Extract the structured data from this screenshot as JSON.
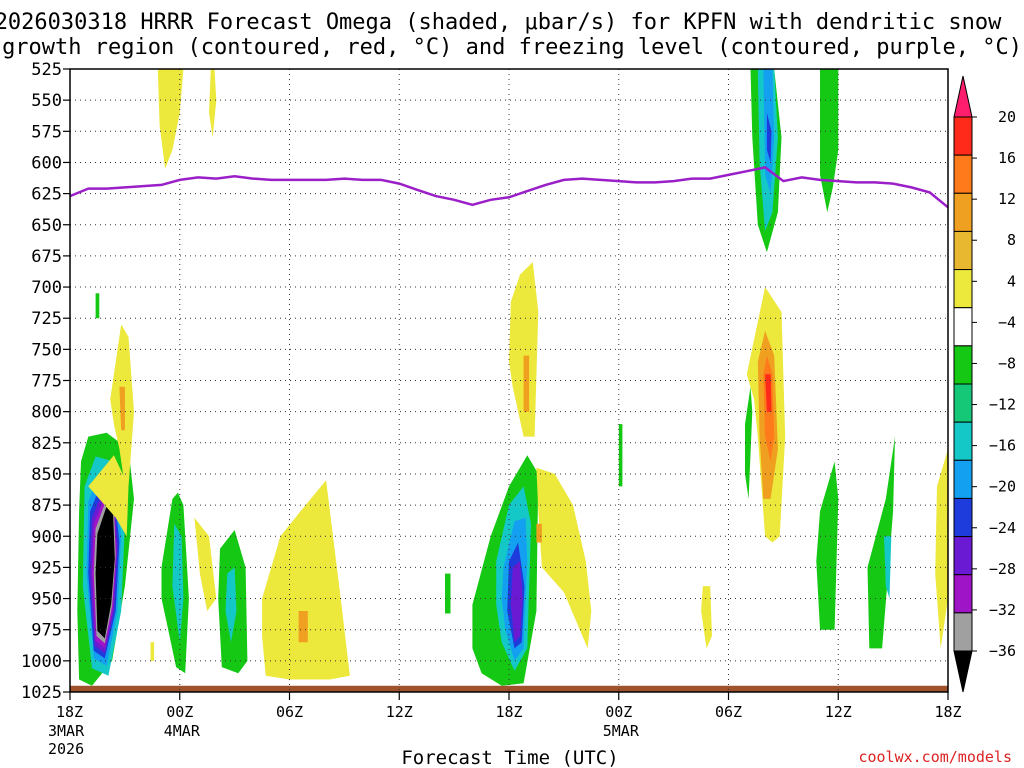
{
  "chart_data": {
    "type": "heatmap",
    "title_line1": "2026030318 HRRR Forecast Omega (shaded, μbar/s) for KPFN with dendritic snow",
    "title_line2": "growth region (contoured, red, °C) and freezing level (contoured, purple, °C)",
    "xlabel": "Forecast Time (UTC)",
    "credit": "coolwx.com/models",
    "x_range_hours": [
      0,
      48
    ],
    "y_range_mb": [
      525,
      1025
    ],
    "y_ticks": [
      "525",
      "550",
      "575",
      "600",
      "625",
      "650",
      "675",
      "700",
      "725",
      "750",
      "775",
      "800",
      "825",
      "850",
      "875",
      "900",
      "925",
      "950",
      "975",
      "1000",
      "1025"
    ],
    "x_ticks": [
      {
        "hour": 0,
        "label": "18Z",
        "sub1": "3MAR",
        "sub2": "2026"
      },
      {
        "hour": 6,
        "label": "00Z",
        "sub1": "4MAR",
        "sub2": ""
      },
      {
        "hour": 12,
        "label": "06Z",
        "sub1": "",
        "sub2": ""
      },
      {
        "hour": 18,
        "label": "12Z",
        "sub1": "",
        "sub2": ""
      },
      {
        "hour": 24,
        "label": "18Z",
        "sub1": "",
        "sub2": ""
      },
      {
        "hour": 30,
        "label": "00Z",
        "sub1": "5MAR",
        "sub2": ""
      },
      {
        "hour": 36,
        "label": "06Z",
        "sub1": "",
        "sub2": ""
      },
      {
        "hour": 42,
        "label": "12Z",
        "sub1": "",
        "sub2": ""
      },
      {
        "hour": 48,
        "label": "18Z",
        "sub1": "",
        "sub2": ""
      }
    ],
    "colorbar": {
      "labels": [
        "20",
        "16",
        "12",
        "8",
        "4",
        "−4",
        "−8",
        "−12",
        "−16",
        "−20",
        "−24",
        "−28",
        "−32",
        "−36"
      ],
      "colors": [
        "#ff1e6e",
        "#ff2a1a",
        "#ff7a1a",
        "#f0a020",
        "#e8b830",
        "#ece83c",
        "#ffffff",
        "#14c814",
        "#14c878",
        "#14c8c8",
        "#14a0f0",
        "#1e3cdc",
        "#6a1ad2",
        "#a014c8",
        "#a0a0a0",
        "#000000"
      ]
    },
    "freezing_level": {
      "name": "freezing level",
      "color": "#9b1fc8",
      "hours": [
        0,
        1,
        2,
        3,
        4,
        5,
        6,
        7,
        8,
        9,
        10,
        11,
        12,
        13,
        14,
        15,
        16,
        17,
        18,
        19,
        20,
        21,
        22,
        23,
        24,
        25,
        26,
        27,
        28,
        29,
        30,
        31,
        32,
        33,
        34,
        35,
        36,
        37,
        38,
        39,
        40,
        41,
        42,
        43,
        44,
        45,
        46,
        47,
        48
      ],
      "pressure_mb": [
        627,
        621,
        621,
        620,
        619,
        618,
        614,
        612,
        613,
        611,
        613,
        614,
        614,
        614,
        614,
        613,
        614,
        614,
        617,
        622,
        627,
        630,
        634,
        630,
        628,
        623,
        618,
        614,
        613,
        614,
        615,
        616,
        616,
        615,
        613,
        613,
        610,
        607,
        604,
        615,
        612,
        614,
        615,
        616,
        616,
        617,
        620,
        624,
        636
      ]
    },
    "omega_regions": [
      {
        "name": "ascent core 18Z-21Z",
        "color": "#14c814",
        "hours": [
          0.6,
          1.0,
          2.0,
          3.2,
          3.5,
          3.0,
          2.3,
          1.2,
          0.5,
          0.4,
          0.5
        ],
        "pressure_mb": [
          840,
          820,
          817,
          830,
          870,
          940,
          1000,
          1020,
          1015,
          960,
          880
        ]
      },
      {
        "name": "ascent core 18Z-21Z",
        "color": "#14c8c8",
        "hours": [
          0.8,
          1.4,
          2.4,
          3.0,
          2.8,
          2.1,
          1.2,
          0.7
        ],
        "pressure_mb": [
          860,
          836,
          840,
          890,
          960,
          1012,
          1006,
          940
        ]
      },
      {
        "name": "ascent core 18Z-21Z",
        "color": "#14a0f0",
        "hours": [
          1.0,
          1.6,
          2.4,
          2.8,
          2.6,
          2.0,
          1.3,
          0.9
        ],
        "pressure_mb": [
          872,
          850,
          856,
          900,
          960,
          1004,
          998,
          930
        ]
      },
      {
        "name": "ascent core 18Z-21Z",
        "color": "#1e3cdc",
        "hours": [
          1.1,
          1.7,
          2.4,
          2.7,
          2.5,
          1.9,
          1.3,
          1.0
        ],
        "pressure_mb": [
          880,
          858,
          862,
          905,
          960,
          998,
          992,
          930
        ]
      },
      {
        "name": "ascent core 18Z-21Z",
        "color": "#6a1ad2",
        "hours": [
          1.2,
          1.8,
          2.4,
          2.6,
          2.4,
          1.9,
          1.35,
          1.1
        ],
        "pressure_mb": [
          885,
          864,
          868,
          908,
          960,
          994,
          988,
          930
        ]
      },
      {
        "name": "ascent core 18Z-21Z",
        "color": "#a014c8",
        "hours": [
          1.3,
          1.9,
          2.4,
          2.55,
          2.35,
          1.9,
          1.4,
          1.2
        ],
        "pressure_mb": [
          890,
          868,
          872,
          912,
          958,
          990,
          984,
          930
        ]
      },
      {
        "name": "ascent core 18Z-21Z",
        "color": "#a0a0a0",
        "hours": [
          1.4,
          1.95,
          2.4,
          2.5,
          2.3,
          1.9,
          1.45,
          1.3
        ],
        "pressure_mb": [
          894,
          872,
          876,
          915,
          956,
          986,
          980,
          930
        ]
      },
      {
        "name": "ascent core 18Z-21Z",
        "color": "#000000",
        "hours": [
          1.5,
          2.0,
          2.35,
          2.45,
          2.25,
          1.9,
          1.5,
          1.4
        ],
        "pressure_mb": [
          898,
          876,
          880,
          918,
          954,
          982,
          976,
          930
        ]
      },
      {
        "name": "ascent 00Z",
        "color": "#14c814",
        "hours": [
          5.0,
          5.6,
          5.9,
          6.2,
          6.5,
          6.3,
          5.8,
          5.3,
          5.0
        ],
        "pressure_mb": [
          925,
          870,
          865,
          875,
          950,
          1010,
          1005,
          970,
          950
        ]
      },
      {
        "name": "ascent 00Z",
        "color": "#14c8c8",
        "hours": [
          5.7,
          6.1,
          6.2,
          6.0,
          5.6
        ],
        "pressure_mb": [
          890,
          900,
          950,
          985,
          940
        ]
      },
      {
        "name": "ascent 03Z",
        "color": "#14c814",
        "hours": [
          8.2,
          9.0,
          9.6,
          9.7,
          9.2,
          8.3,
          8.1
        ],
        "pressure_mb": [
          910,
          895,
          925,
          1000,
          1010,
          1005,
          950
        ]
      },
      {
        "name": "ascent 03Z",
        "color": "#14c8c8",
        "hours": [
          8.6,
          9.0,
          9.1,
          8.8,
          8.5
        ],
        "pressure_mb": [
          930,
          925,
          960,
          985,
          960
        ]
      },
      {
        "name": "ascent 18Z 4MAR",
        "color": "#14c814",
        "hours": [
          22.0,
          23.0,
          24.0,
          25.0,
          25.6,
          25.5,
          24.8,
          23.6,
          22.5,
          22.0
        ],
        "pressure_mb": [
          955,
          900,
          860,
          835,
          850,
          960,
          1018,
          1020,
          1010,
          990
        ]
      },
      {
        "name": "ascent 18Z 4MAR",
        "color": "#14c8c8",
        "hours": [
          23.3,
          24.0,
          24.8,
          25.2,
          25.0,
          24.3,
          23.6,
          23.3
        ],
        "pressure_mb": [
          920,
          875,
          860,
          890,
          990,
          1008,
          985,
          955
        ]
      },
      {
        "name": "ascent 18Z 4MAR",
        "color": "#14a0f0",
        "hours": [
          23.7,
          24.3,
          24.9,
          25.0,
          24.8,
          24.3,
          23.8,
          23.6
        ],
        "pressure_mb": [
          925,
          888,
          885,
          920,
          990,
          1000,
          975,
          950
        ]
      },
      {
        "name": "ascent 18Z 4MAR",
        "color": "#1e3cdc",
        "hours": [
          24.0,
          24.5,
          24.85,
          24.7,
          24.3,
          23.9
        ],
        "pressure_mb": [
          920,
          905,
          940,
          985,
          990,
          960
        ]
      },
      {
        "name": "ascent 18Z 4MAR",
        "color": "#6a1ad2",
        "hours": [
          24.2,
          24.6,
          24.75,
          24.6,
          24.3,
          24.1
        ],
        "pressure_mb": [
          925,
          920,
          950,
          980,
          985,
          955
        ]
      },
      {
        "name": "ascent 08Z upper",
        "color": "#14c814",
        "hours": [
          37.2,
          38.5,
          38.9,
          38.7,
          38.1,
          37.6,
          37.3
        ],
        "pressure_mb": [
          525,
          525,
          580,
          640,
          672,
          650,
          580
        ]
      },
      {
        "name": "ascent 08Z upper",
        "color": "#14c8c8",
        "hours": [
          37.6,
          38.5,
          38.7,
          38.4,
          38.0,
          37.7
        ],
        "pressure_mb": [
          525,
          525,
          580,
          640,
          655,
          600
        ]
      },
      {
        "name": "ascent 08Z upper",
        "color": "#14a0f0",
        "hours": [
          37.9,
          38.4,
          38.5,
          38.3,
          38.0
        ],
        "pressure_mb": [
          525,
          525,
          580,
          625,
          610
        ]
      },
      {
        "name": "ascent 08Z upper",
        "color": "#1e3cdc",
        "hours": [
          38.1,
          38.35,
          38.3,
          38.1
        ],
        "pressure_mb": [
          560,
          575,
          600,
          590
        ]
      },
      {
        "name": "ascent 12Z upper",
        "color": "#14c814",
        "hours": [
          41.0,
          42.0,
          42.0,
          41.7,
          41.4,
          41.0
        ],
        "pressure_mb": [
          525,
          525,
          590,
          620,
          640,
          610
        ]
      },
      {
        "name": "ascent 12Z low",
        "color": "#14c814",
        "hours": [
          41.0,
          41.8,
          42.0,
          41.8,
          41.0,
          40.8
        ],
        "pressure_mb": [
          880,
          840,
          870,
          975,
          975,
          920
        ]
      },
      {
        "name": "ascent 15Z low",
        "color": "#14c814",
        "hours": [
          43.6,
          44.6,
          45.1,
          45.0,
          44.4,
          43.7
        ],
        "pressure_mb": [
          925,
          870,
          820,
          880,
          990,
          990
        ]
      },
      {
        "name": "ascent 15Z low",
        "color": "#14c8c8",
        "hours": [
          44.5,
          44.9,
          44.8,
          44.6
        ],
        "pressure_mb": [
          900,
          900,
          950,
          940
        ]
      },
      {
        "name": "ascent 07Z",
        "color": "#14c814",
        "hours": [
          36.9,
          37.2,
          37.3,
          37.1,
          36.9
        ],
        "pressure_mb": [
          810,
          780,
          800,
          870,
          850
        ]
      },
      {
        "name": "ascent speck",
        "color": "#14c814",
        "hours": [
          1.4,
          1.6,
          1.6,
          1.4
        ],
        "pressure_mb": [
          705,
          705,
          725,
          725
        ]
      },
      {
        "name": "ascent speck",
        "color": "#14c814",
        "hours": [
          20.5,
          20.8,
          20.8,
          20.5
        ],
        "pressure_mb": [
          930,
          930,
          962,
          962
        ]
      },
      {
        "name": "ascent speck",
        "color": "#14c814",
        "hours": [
          30.0,
          30.2,
          30.2,
          30.0
        ],
        "pressure_mb": [
          810,
          810,
          860,
          860
        ]
      },
      {
        "name": "descent upper 20Z",
        "color": "#ece83c",
        "hours": [
          4.8,
          6.2,
          6.0,
          5.6,
          5.2,
          4.9
        ],
        "pressure_mb": [
          525,
          525,
          560,
          590,
          605,
          570
        ]
      },
      {
        "name": "descent upper 21Z",
        "color": "#ece83c",
        "hours": [
          7.7,
          7.9,
          8.0,
          7.8,
          7.6
        ],
        "pressure_mb": [
          525,
          525,
          550,
          580,
          560
        ]
      },
      {
        "name": "descent 20Z mid",
        "color": "#ece83c",
        "hours": [
          2.4,
          2.8,
          3.2,
          3.5,
          3.2,
          3.0,
          2.7,
          2.4,
          2.2
        ],
        "pressure_mb": [
          770,
          730,
          740,
          800,
          860,
          860,
          830,
          810,
          790
        ]
      },
      {
        "name": "descent 20Z mid",
        "color": "#f0a020",
        "hours": [
          2.7,
          3.0,
          3.0,
          2.8
        ],
        "pressure_mb": [
          780,
          780,
          815,
          815
        ]
      },
      {
        "name": "descent 19Z low",
        "color": "#ece83c",
        "hours": [
          1.0,
          2.4,
          3.2,
          3.1,
          2.5
        ],
        "pressure_mb": [
          860,
          835,
          860,
          900,
          885
        ]
      },
      {
        "name": "descent 01Z",
        "color": "#ece83c",
        "hours": [
          6.8,
          7.6,
          8.0,
          7.5,
          7.1
        ],
        "pressure_mb": [
          885,
          900,
          950,
          960,
          930
        ]
      },
      {
        "name": "descent 04Z",
        "color": "#ece83c",
        "hours": [
          10.5,
          11.5,
          12.6,
          14.0,
          14.8,
          15.3,
          14.2,
          12.0,
          10.7,
          10.5
        ],
        "pressure_mb": [
          950,
          900,
          880,
          855,
          950,
          1012,
          1015,
          1015,
          1012,
          980
        ]
      },
      {
        "name": "descent 04Z",
        "color": "#f0a020",
        "hours": [
          12.5,
          13.0,
          13.0,
          12.5
        ],
        "pressure_mb": [
          960,
          960,
          985,
          985
        ]
      },
      {
        "name": "descent 18Z-19Z mid",
        "color": "#ece83c",
        "hours": [
          24.1,
          24.6,
          25.3,
          25.6,
          25.4,
          24.8,
          24.2,
          24.0
        ],
        "pressure_mb": [
          712,
          690,
          680,
          720,
          820,
          820,
          780,
          760
        ]
      },
      {
        "name": "descent 18Z-19Z mid",
        "color": "#f0a020",
        "hours": [
          24.8,
          25.1,
          25.1,
          24.8
        ],
        "pressure_mb": [
          755,
          755,
          800,
          800
        ]
      },
      {
        "name": "descent 21Z",
        "color": "#ece83c",
        "hours": [
          25.5,
          26.5,
          27.5,
          28.2,
          28.5,
          28.3,
          27.0,
          25.8,
          25.6
        ],
        "pressure_mb": [
          845,
          850,
          875,
          920,
          960,
          990,
          945,
          925,
          880
        ]
      },
      {
        "name": "descent 21Z",
        "color": "#f0a020",
        "hours": [
          25.5,
          25.8,
          25.8,
          25.5
        ],
        "pressure_mb": [
          890,
          890,
          905,
          905
        ]
      },
      {
        "name": "descent 08Z",
        "color": "#ece83c",
        "hours": [
          37.0,
          38.0,
          38.9,
          39.1,
          38.8,
          38.4,
          38.0,
          37.6,
          37.4
        ],
        "pressure_mb": [
          770,
          700,
          720,
          820,
          900,
          905,
          900,
          820,
          790
        ]
      },
      {
        "name": "descent 08Z",
        "color": "#f0a020",
        "hours": [
          37.6,
          38.0,
          38.5,
          38.7,
          38.3,
          37.9,
          37.7
        ],
        "pressure_mb": [
          760,
          735,
          755,
          830,
          870,
          870,
          820
        ]
      },
      {
        "name": "descent 08Z",
        "color": "#ff7a1a",
        "hours": [
          37.9,
          38.1,
          38.4,
          38.5,
          38.3,
          38.0
        ],
        "pressure_mb": [
          770,
          755,
          770,
          820,
          840,
          820
        ]
      },
      {
        "name": "descent 08Z",
        "color": "#ff2a1a",
        "hours": [
          38.0,
          38.3,
          38.35,
          38.1
        ],
        "pressure_mb": [
          770,
          770,
          800,
          800
        ]
      },
      {
        "name": "descent 05Z",
        "color": "#ece83c",
        "hours": [
          34.6,
          35.0,
          35.1,
          34.8,
          34.5
        ],
        "pressure_mb": [
          940,
          940,
          980,
          990,
          960
        ]
      },
      {
        "name": "descent 17Z",
        "color": "#ece83c",
        "hours": [
          47.4,
          48.0,
          48.0,
          47.6,
          47.3
        ],
        "pressure_mb": [
          860,
          830,
          950,
          990,
          930
        ]
      },
      {
        "name": "descent speck",
        "color": "#ece83c",
        "hours": [
          4.4,
          4.6,
          4.6,
          4.4
        ],
        "pressure_mb": [
          985,
          985,
          1000,
          1000
        ]
      }
    ]
  }
}
